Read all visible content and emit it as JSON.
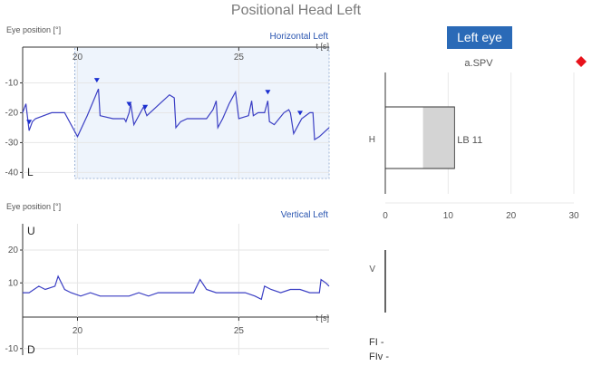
{
  "title": "Positional Head Left",
  "eye_button": "Left eye",
  "marker_color": "#e8121b",
  "line_color": "#3b3fc4",
  "chart_data": [
    {
      "type": "line",
      "name": "horizontal",
      "ylabel": "Eye position [°]",
      "xlabel": "t [s]",
      "series_label": "Horizontal Left",
      "bottom_letter": "L",
      "xlim": [
        18.3,
        27.8
      ],
      "ylim": [
        -42,
        5
      ],
      "xticks": [
        20,
        25
      ],
      "yticks": [
        -10,
        -20,
        -30,
        -40
      ],
      "selection": [
        20.0,
        27.8
      ],
      "markers_x": [
        18.5,
        20.6,
        21.6,
        22.1,
        25.9,
        26.9
      ],
      "x": [
        18.3,
        18.4,
        18.5,
        18.6,
        18.7,
        19.2,
        19.6,
        20.0,
        20.3,
        20.65,
        20.7,
        21.1,
        21.45,
        21.5,
        21.6,
        21.65,
        21.75,
        21.85,
        22.0,
        22.05,
        22.15,
        22.25,
        22.55,
        22.85,
        23.0,
        23.05,
        23.2,
        23.4,
        23.6,
        23.8,
        24.0,
        24.2,
        24.3,
        24.35,
        24.5,
        24.7,
        24.9,
        25.0,
        25.3,
        25.4,
        25.45,
        25.6,
        25.8,
        25.9,
        25.95,
        26.1,
        26.4,
        26.55,
        26.6,
        26.7,
        26.9,
        26.95,
        27.2,
        27.3,
        27.35,
        27.5,
        27.8
      ],
      "values": [
        -20,
        -17,
        -26,
        -23,
        -22,
        -20,
        -20,
        -28,
        -21,
        -12,
        -21,
        -22,
        -22,
        -23,
        -20,
        -17,
        -24,
        -22,
        -19,
        -18,
        -21,
        -20,
        -17,
        -14,
        -15,
        -25,
        -23,
        -22,
        -22,
        -22,
        -22,
        -19,
        -16,
        -25,
        -22,
        -17,
        -13,
        -22,
        -21,
        -16,
        -21,
        -20,
        -20,
        -16,
        -23,
        -24,
        -20,
        -19,
        -20,
        -27,
        -23,
        -22,
        -20,
        -20,
        -29,
        -28,
        -25
      ]
    },
    {
      "type": "line",
      "name": "vertical",
      "ylabel": "Eye position [°]",
      "xlabel": "t [s]",
      "series_label": "Vertical Left",
      "top_letter": "U",
      "bottom_letter": "D",
      "xlim": [
        18.3,
        27.8
      ],
      "ylim": [
        -12,
        28
      ],
      "xticks": [
        20,
        25
      ],
      "yticks": [
        20,
        10,
        -10
      ],
      "x": [
        18.3,
        18.5,
        18.8,
        19.0,
        19.3,
        19.4,
        19.6,
        19.8,
        20.1,
        20.4,
        20.7,
        21.0,
        21.3,
        21.6,
        21.9,
        22.2,
        22.5,
        22.8,
        23.1,
        23.4,
        23.6,
        23.7,
        23.8,
        24.0,
        24.3,
        24.6,
        24.9,
        25.2,
        25.5,
        25.7,
        25.8,
        26.0,
        26.3,
        26.6,
        26.9,
        27.2,
        27.5,
        27.55,
        27.7,
        27.8
      ],
      "values": [
        7,
        7,
        9,
        8,
        9,
        12,
        8,
        7,
        6,
        7,
        6,
        6,
        6,
        6,
        7,
        6,
        7,
        7,
        7,
        7,
        7,
        9,
        11,
        8,
        7,
        7,
        7,
        7,
        6,
        5,
        9,
        8,
        7,
        8,
        8,
        7,
        7,
        11,
        10,
        9
      ]
    },
    {
      "type": "bar",
      "name": "spv",
      "title": "a.SPV",
      "orientation": "horizontal",
      "categories": [
        "H",
        "V"
      ],
      "xlim": [
        0,
        30
      ],
      "xticks": [
        0,
        10,
        20,
        30
      ],
      "bar_h": {
        "start": 0,
        "end": 11,
        "inner_start": 6,
        "label": "LB 11"
      },
      "bar_v": {
        "value": 0
      }
    }
  ],
  "footer": {
    "fi": "FI -",
    "fiv": "FIv -"
  }
}
